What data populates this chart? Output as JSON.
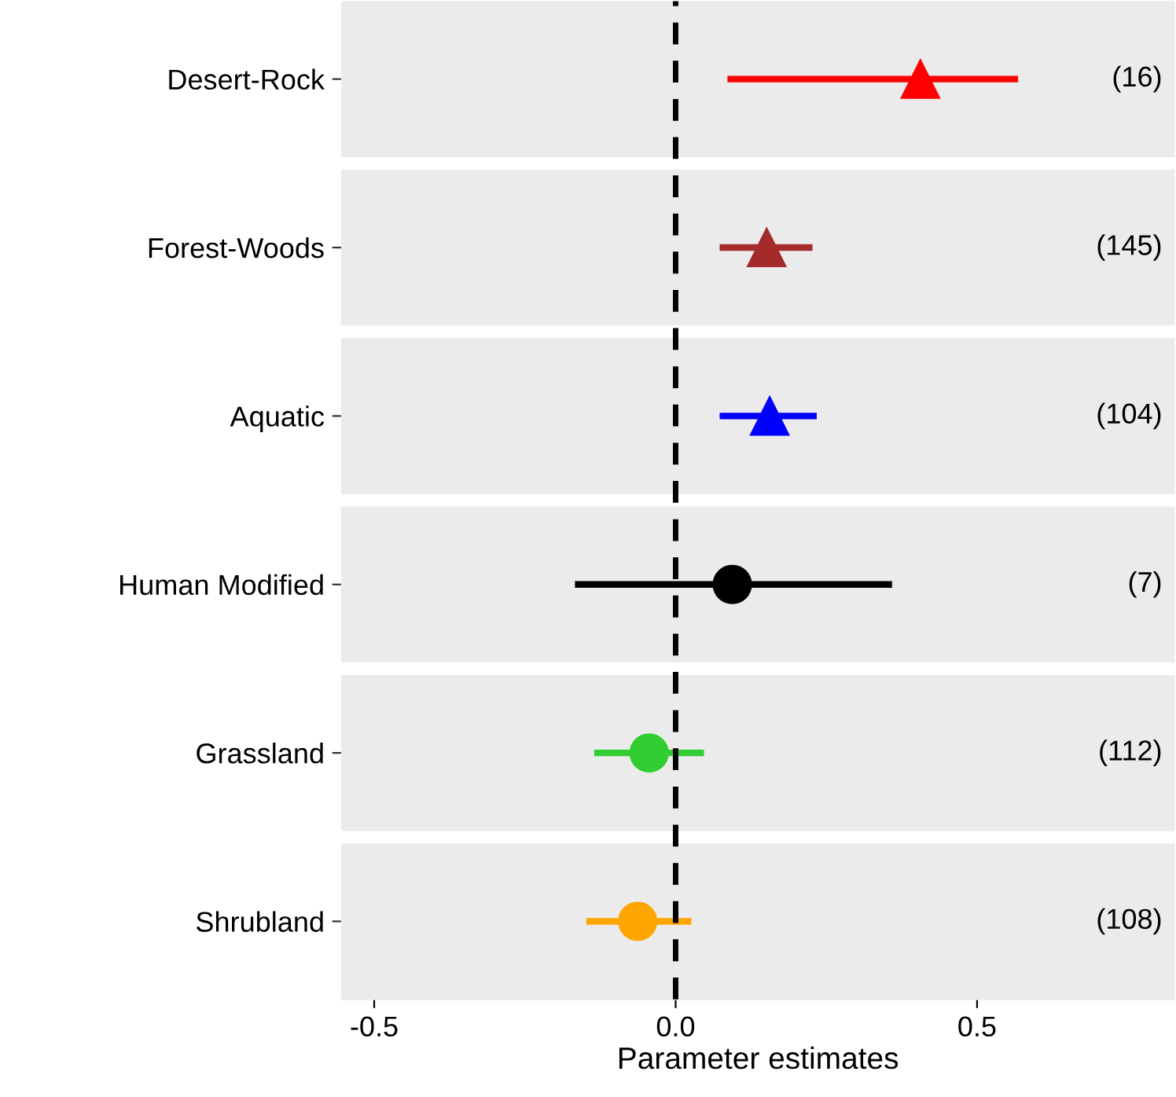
{
  "chart_data": {
    "type": "scatter",
    "orientation": "horizontal",
    "categories": [
      "Desert-Rock",
      "Forest-Woods",
      "Aquatic",
      "Human Modified",
      "Grassland",
      "Shrubland"
    ],
    "series": [
      {
        "marker": "triangle",
        "colors": [
          "#ff0000",
          "#a52a2a",
          "#0000ff",
          null,
          null,
          null
        ],
        "values": [
          0.406,
          0.151,
          0.156,
          null,
          null,
          null
        ],
        "errors": [
          [
            0.086,
            0.568
          ],
          [
            0.073,
            0.227
          ],
          [
            0.073,
            0.234
          ],
          null,
          null,
          null
        ]
      },
      {
        "marker": "circle",
        "colors": [
          null,
          null,
          null,
          "#000000",
          "#32cd32",
          "#ffa500"
        ],
        "values": [
          null,
          null,
          null,
          0.094,
          -0.044,
          -0.063
        ],
        "errors": [
          null,
          null,
          null,
          [
            -0.167,
            0.359
          ],
          [
            -0.135,
            0.047
          ],
          [
            -0.148,
            0.026
          ]
        ]
      }
    ],
    "xlabel": "Parameter estimates",
    "xlim": [
      -0.555,
      0.828
    ],
    "xticks": [
      -0.5,
      {
        "value": 0,
        "label": "0.0"
      },
      0.5
    ],
    "ref_lines": [
      {
        "axis": "x",
        "value": 0,
        "color": "#000000",
        "line_style": "dashed"
      }
    ],
    "annotations": [
      "(16)",
      "(145)",
      "(104)",
      "(7)",
      "(112)",
      "(108)"
    ],
    "grid": false
  }
}
